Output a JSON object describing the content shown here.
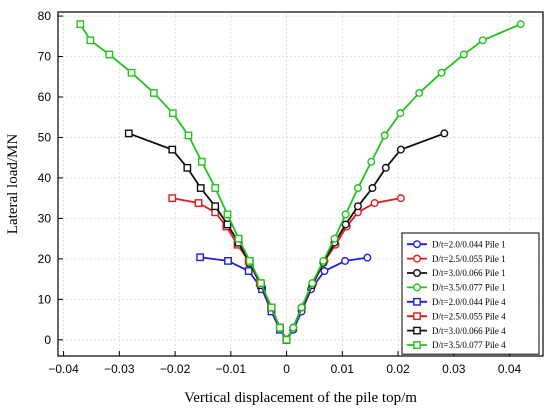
{
  "chart_data": {
    "type": "line",
    "title": "",
    "xlabel": "Vertical displacement of the pile top/m",
    "ylabel": "Lateral load/MN",
    "xlim": [
      -0.041,
      0.046
    ],
    "ylim": [
      -4,
      81
    ],
    "x_ticks": [
      -0.04,
      -0.03,
      -0.02,
      -0.01,
      0,
      0.01,
      0.02,
      0.03,
      0.04
    ],
    "x_tick_labels": [
      "−0.04",
      "−0.03",
      "−0.02",
      "−0.01",
      "0",
      "0.01",
      "0.02",
      "0.03",
      "0.04"
    ],
    "y_ticks": [
      0,
      10,
      20,
      30,
      40,
      50,
      60,
      70,
      80
    ],
    "y_tick_labels": [
      "0",
      "10",
      "20",
      "30",
      "40",
      "50",
      "60",
      "70",
      "80"
    ],
    "grid": true,
    "legend_position": "bottom-right",
    "series": [
      {
        "name": "D/t=2.0/0.044 Pile 1",
        "color": "#1f1fd6",
        "marker": "circle",
        "x": [
          0,
          0.0012,
          0.0027,
          0.0044,
          0.0068,
          0.0105,
          0.0145
        ],
        "y": [
          0,
          2.5,
          7,
          12.5,
          17,
          19.5,
          20.3
        ]
      },
      {
        "name": "D/t=2.5/0.055 Pile 1",
        "color": "#e01b1b",
        "marker": "circle",
        "x": [
          0,
          0.0012,
          0.0028,
          0.0048,
          0.0068,
          0.0088,
          0.0108,
          0.0128,
          0.0158,
          0.0205
        ],
        "y": [
          0,
          3,
          8,
          14,
          19.5,
          23.5,
          28,
          31.5,
          33.8,
          35
        ]
      },
      {
        "name": "D/t=3.0/0.066 Pile 1",
        "color": "#111111",
        "marker": "circle",
        "x": [
          0,
          0.0012,
          0.0027,
          0.0046,
          0.0066,
          0.0086,
          0.0106,
          0.0128,
          0.0154,
          0.0178,
          0.0205,
          0.0283
        ],
        "y": [
          0,
          3,
          8,
          13.5,
          19,
          24,
          28.5,
          33,
          37.5,
          42.5,
          47,
          51
        ]
      },
      {
        "name": "D/t=3.5/0.077 Pile 1",
        "color": "#22c21e",
        "marker": "circle",
        "x": [
          0,
          0.0012,
          0.0027,
          0.0046,
          0.0066,
          0.0086,
          0.0106,
          0.0128,
          0.0152,
          0.0176,
          0.0204,
          0.0238,
          0.0278,
          0.0318,
          0.0352,
          0.042
        ],
        "y": [
          0,
          3,
          8,
          14,
          19.5,
          25,
          31,
          37.5,
          44,
          50.5,
          56,
          61,
          66,
          70.5,
          74,
          78
        ]
      },
      {
        "name": "D/t=2.0/0.044 Pile 4",
        "color": "#1f1fd6",
        "marker": "square",
        "x": [
          0,
          -0.0012,
          -0.0027,
          -0.0044,
          -0.0068,
          -0.0105,
          -0.0155
        ],
        "y": [
          0,
          2.5,
          7,
          12.5,
          17,
          19.5,
          20.4
        ]
      },
      {
        "name": "D/t=2.5/0.055 Pile 4",
        "color": "#e01b1b",
        "marker": "square",
        "x": [
          0,
          -0.0012,
          -0.0028,
          -0.0048,
          -0.0068,
          -0.0088,
          -0.0108,
          -0.0128,
          -0.0158,
          -0.0205
        ],
        "y": [
          0,
          3,
          8,
          14,
          19.5,
          23.5,
          28,
          31.5,
          33.8,
          35
        ]
      },
      {
        "name": "D/t=3.0/0.066 Pile 4",
        "color": "#111111",
        "marker": "square",
        "x": [
          0,
          -0.0012,
          -0.0027,
          -0.0046,
          -0.0066,
          -0.0086,
          -0.0106,
          -0.0128,
          -0.0154,
          -0.0178,
          -0.0205,
          -0.0283
        ],
        "y": [
          0,
          3,
          8,
          13.5,
          19,
          24,
          28.5,
          33,
          37.5,
          42.5,
          47,
          51
        ]
      },
      {
        "name": "D/t=3.5/0.077 Pile 4",
        "color": "#22c21e",
        "marker": "square",
        "x": [
          0,
          -0.0012,
          -0.0027,
          -0.0046,
          -0.0066,
          -0.0086,
          -0.0106,
          -0.0128,
          -0.0152,
          -0.0176,
          -0.0204,
          -0.0238,
          -0.0278,
          -0.0318,
          -0.0352,
          -0.037
        ],
        "y": [
          0,
          3,
          8,
          14,
          19.5,
          25,
          31,
          37.5,
          44,
          50.5,
          56,
          61,
          66,
          70.5,
          74,
          78
        ]
      }
    ]
  }
}
